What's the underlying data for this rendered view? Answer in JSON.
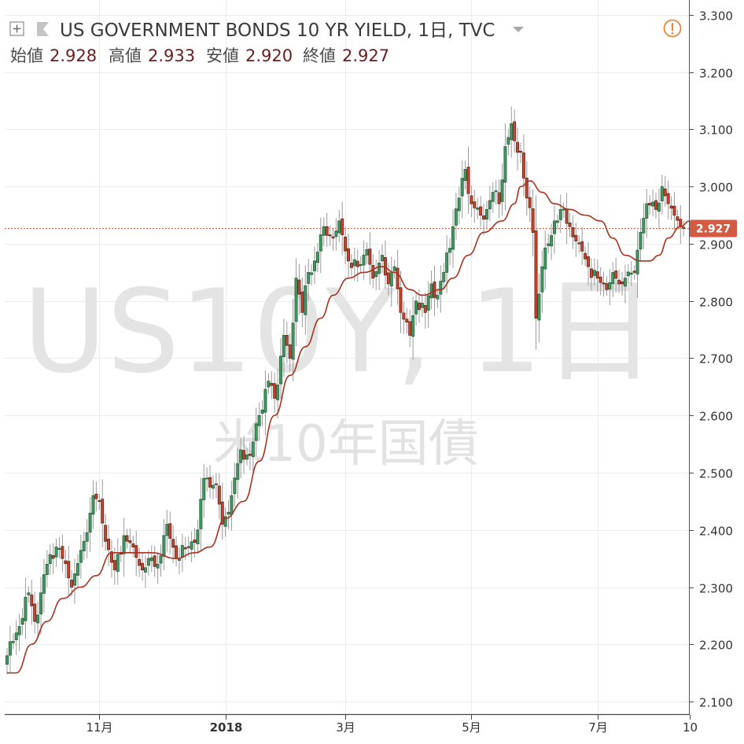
{
  "header": {
    "title": "US GOVERNMENT BONDS 10 YR YIELD, 1日, TVC",
    "ohlc": [
      {
        "label": "始値",
        "value": "2.928"
      },
      {
        "label": "高値",
        "value": "2.933"
      },
      {
        "label": "安値",
        "value": "2.920"
      },
      {
        "label": "終値",
        "value": "2.927"
      }
    ],
    "expand_icon": "plus-square-icon",
    "flag_icon": "flag-icon",
    "dropdown_icon": "caret-down-icon",
    "alert_icon": "exclamation-circle-icon"
  },
  "watermark": {
    "symbol": "US10Y, 1日",
    "name": "米10年国債"
  },
  "last_price": {
    "value": "2.927",
    "color": "#d35a43"
  },
  "colors": {
    "up": "#3f9960",
    "up_border": "#2f5f3f",
    "down": "#c9442c",
    "down_border": "#5b2a20",
    "wick": "#9a9a9a",
    "ma": "#a8321d",
    "grid": "#ececec",
    "axis": "#444444"
  },
  "chart_data": {
    "type": "candlestick",
    "y_axis": {
      "min": 2.07,
      "max": 3.33,
      "ticks": [
        "2.100",
        "2.200",
        "2.300",
        "2.400",
        "2.500",
        "2.600",
        "2.700",
        "2.800",
        "2.900",
        "3.000",
        "3.100",
        "3.200",
        "3.300"
      ]
    },
    "x_axis": {
      "ticks": [
        {
          "label": "11月",
          "bold": false,
          "index": 30
        },
        {
          "label": "2018",
          "bold": true,
          "index": 71
        },
        {
          "label": "3月",
          "bold": false,
          "index": 110
        },
        {
          "label": "5月",
          "bold": false,
          "index": 151
        },
        {
          "label": "7月",
          "bold": false,
          "index": 192
        },
        {
          "label": "10",
          "bold": false,
          "index": 222
        }
      ]
    },
    "anchors": [
      {
        "i": 0,
        "v": 2.18
      },
      {
        "i": 3,
        "v": 2.22
      },
      {
        "i": 7,
        "v": 2.29
      },
      {
        "i": 9,
        "v": 2.24
      },
      {
        "i": 11,
        "v": 2.29
      },
      {
        "i": 13,
        "v": 2.34
      },
      {
        "i": 16,
        "v": 2.37
      },
      {
        "i": 18,
        "v": 2.35
      },
      {
        "i": 21,
        "v": 2.3
      },
      {
        "i": 25,
        "v": 2.38
      },
      {
        "i": 28,
        "v": 2.46
      },
      {
        "i": 30,
        "v": 2.45
      },
      {
        "i": 32,
        "v": 2.38
      },
      {
        "i": 35,
        "v": 2.33
      },
      {
        "i": 38,
        "v": 2.39
      },
      {
        "i": 41,
        "v": 2.37
      },
      {
        "i": 44,
        "v": 2.33
      },
      {
        "i": 46,
        "v": 2.35
      },
      {
        "i": 49,
        "v": 2.34
      },
      {
        "i": 52,
        "v": 2.41
      },
      {
        "i": 55,
        "v": 2.35
      },
      {
        "i": 59,
        "v": 2.37
      },
      {
        "i": 62,
        "v": 2.4
      },
      {
        "i": 64,
        "v": 2.49
      },
      {
        "i": 68,
        "v": 2.48
      },
      {
        "i": 70,
        "v": 2.41
      },
      {
        "i": 73,
        "v": 2.46
      },
      {
        "i": 76,
        "v": 2.54
      },
      {
        "i": 79,
        "v": 2.53
      },
      {
        "i": 82,
        "v": 2.6
      },
      {
        "i": 85,
        "v": 2.66
      },
      {
        "i": 87,
        "v": 2.63
      },
      {
        "i": 90,
        "v": 2.74
      },
      {
        "i": 92,
        "v": 2.7
      },
      {
        "i": 94,
        "v": 2.84
      },
      {
        "i": 96,
        "v": 2.78
      },
      {
        "i": 98,
        "v": 2.85
      },
      {
        "i": 100,
        "v": 2.87
      },
      {
        "i": 103,
        "v": 2.93
      },
      {
        "i": 106,
        "v": 2.91
      },
      {
        "i": 108,
        "v": 2.94
      },
      {
        "i": 111,
        "v": 2.87
      },
      {
        "i": 114,
        "v": 2.86
      },
      {
        "i": 117,
        "v": 2.89
      },
      {
        "i": 119,
        "v": 2.84
      },
      {
        "i": 122,
        "v": 2.88
      },
      {
        "i": 124,
        "v": 2.83
      },
      {
        "i": 126,
        "v": 2.86
      },
      {
        "i": 128,
        "v": 2.78
      },
      {
        "i": 131,
        "v": 2.74
      },
      {
        "i": 133,
        "v": 2.8
      },
      {
        "i": 136,
        "v": 2.78
      },
      {
        "i": 138,
        "v": 2.83
      },
      {
        "i": 140,
        "v": 2.81
      },
      {
        "i": 142,
        "v": 2.85
      },
      {
        "i": 145,
        "v": 2.93
      },
      {
        "i": 147,
        "v": 2.98
      },
      {
        "i": 149,
        "v": 3.03
      },
      {
        "i": 151,
        "v": 2.97
      },
      {
        "i": 154,
        "v": 2.95
      },
      {
        "i": 156,
        "v": 2.96
      },
      {
        "i": 158,
        "v": 2.99
      },
      {
        "i": 160,
        "v": 2.97
      },
      {
        "i": 162,
        "v": 3.07
      },
      {
        "i": 164,
        "v": 3.11
      },
      {
        "i": 165,
        "v": 3.08
      },
      {
        "i": 167,
        "v": 3.06
      },
      {
        "i": 169,
        "v": 2.98
      },
      {
        "i": 171,
        "v": 2.92
      },
      {
        "i": 172,
        "v": 2.77
      },
      {
        "i": 174,
        "v": 2.86
      },
      {
        "i": 176,
        "v": 2.9
      },
      {
        "i": 178,
        "v": 2.94
      },
      {
        "i": 180,
        "v": 2.96
      },
      {
        "i": 183,
        "v": 2.93
      },
      {
        "i": 186,
        "v": 2.9
      },
      {
        "i": 189,
        "v": 2.86
      },
      {
        "i": 192,
        "v": 2.84
      },
      {
        "i": 195,
        "v": 2.82
      },
      {
        "i": 197,
        "v": 2.85
      },
      {
        "i": 199,
        "v": 2.83
      },
      {
        "i": 201,
        "v": 2.84
      },
      {
        "i": 204,
        "v": 2.85
      },
      {
        "i": 206,
        "v": 2.92
      },
      {
        "i": 208,
        "v": 2.97
      },
      {
        "i": 211,
        "v": 2.96
      },
      {
        "i": 213,
        "v": 3.0
      },
      {
        "i": 215,
        "v": 2.97
      },
      {
        "i": 217,
        "v": 2.95
      },
      {
        "i": 219,
        "v": 2.93
      },
      {
        "i": 220,
        "v": 2.927
      }
    ],
    "moving_average": {
      "points": [
        {
          "i": 0,
          "v": 2.15
        },
        {
          "i": 3,
          "v": 2.15
        },
        {
          "i": 8,
          "v": 2.2
        },
        {
          "i": 13,
          "v": 2.24
        },
        {
          "i": 18,
          "v": 2.28
        },
        {
          "i": 24,
          "v": 2.3
        },
        {
          "i": 29,
          "v": 2.32
        },
        {
          "i": 34,
          "v": 2.36
        },
        {
          "i": 40,
          "v": 2.36
        },
        {
          "i": 47,
          "v": 2.36
        },
        {
          "i": 55,
          "v": 2.35
        },
        {
          "i": 61,
          "v": 2.36
        },
        {
          "i": 66,
          "v": 2.37
        },
        {
          "i": 71,
          "v": 2.42
        },
        {
          "i": 77,
          "v": 2.45
        },
        {
          "i": 82,
          "v": 2.52
        },
        {
          "i": 87,
          "v": 2.6
        },
        {
          "i": 92,
          "v": 2.67
        },
        {
          "i": 97,
          "v": 2.72
        },
        {
          "i": 102,
          "v": 2.77
        },
        {
          "i": 106,
          "v": 2.81
        },
        {
          "i": 111,
          "v": 2.84
        },
        {
          "i": 116,
          "v": 2.85
        },
        {
          "i": 122,
          "v": 2.86
        },
        {
          "i": 126,
          "v": 2.85
        },
        {
          "i": 131,
          "v": 2.82
        },
        {
          "i": 135,
          "v": 2.81
        },
        {
          "i": 141,
          "v": 2.82
        },
        {
          "i": 145,
          "v": 2.84
        },
        {
          "i": 150,
          "v": 2.88
        },
        {
          "i": 155,
          "v": 2.92
        },
        {
          "i": 161,
          "v": 2.94
        },
        {
          "i": 165,
          "v": 2.97
        },
        {
          "i": 167,
          "v": 3.0
        },
        {
          "i": 170,
          "v": 3.01
        },
        {
          "i": 174,
          "v": 2.99
        },
        {
          "i": 178,
          "v": 2.97
        },
        {
          "i": 183,
          "v": 2.96
        },
        {
          "i": 188,
          "v": 2.95
        },
        {
          "i": 193,
          "v": 2.94
        },
        {
          "i": 197,
          "v": 2.91
        },
        {
          "i": 201,
          "v": 2.88
        },
        {
          "i": 206,
          "v": 2.87
        },
        {
          "i": 209,
          "v": 2.87
        },
        {
          "i": 212,
          "v": 2.88
        },
        {
          "i": 215,
          "v": 2.91
        },
        {
          "i": 219,
          "v": 2.93
        },
        {
          "i": 222,
          "v": 2.94
        },
        {
          "i": 224,
          "v": 2.935
        }
      ]
    }
  }
}
